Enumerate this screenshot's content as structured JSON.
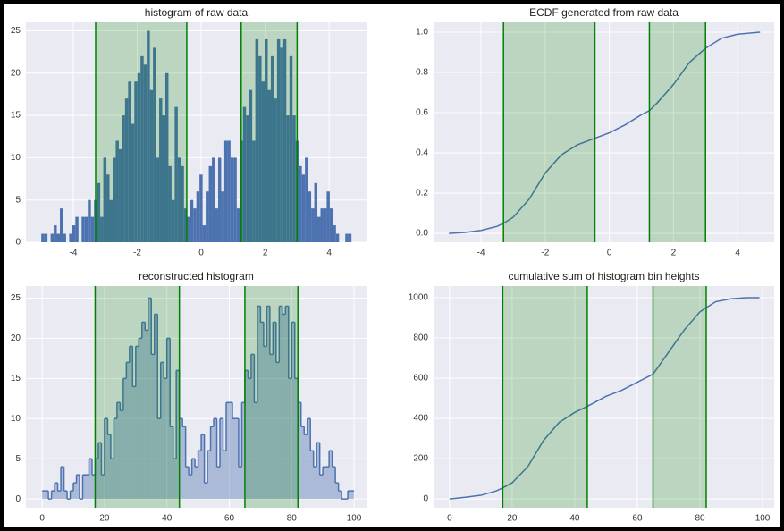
{
  "chart_data": [
    {
      "type": "histogram",
      "title": "histogram of raw data",
      "color": "#4c72b0",
      "grid": true,
      "bins": [
        -5.0,
        -4.903,
        -4.806,
        -4.709,
        -4.612,
        -4.515,
        -4.418,
        -4.321,
        -4.224,
        -4.127,
        -4.03,
        -3.933,
        -3.836,
        -3.739,
        -3.642,
        -3.545,
        -3.448,
        -3.351,
        -3.254,
        -3.157,
        -3.06,
        -2.963,
        -2.866,
        -2.769,
        -2.672,
        -2.575,
        -2.478,
        -2.381,
        -2.284,
        -2.187,
        -2.09,
        -1.993,
        -1.896,
        -1.799,
        -1.702,
        -1.605,
        -1.508,
        -1.411,
        -1.314,
        -1.217,
        -1.12,
        -1.023,
        -0.926,
        -0.829,
        -0.732,
        -0.635,
        -0.538,
        -0.441,
        -0.344,
        -0.247,
        -0.15,
        -0.053,
        0.044,
        0.141,
        0.238,
        0.335,
        0.432,
        0.529,
        0.626,
        0.723,
        0.82,
        0.917,
        1.014,
        1.111,
        1.208,
        1.305,
        1.402,
        1.499,
        1.596,
        1.693,
        1.79,
        1.887,
        1.984,
        2.081,
        2.178,
        2.275,
        2.372,
        2.469,
        2.566,
        2.663,
        2.76,
        2.857,
        2.954,
        3.051,
        3.148,
        3.245,
        3.342,
        3.439,
        3.536,
        3.633,
        3.73,
        3.827,
        3.924,
        4.021,
        4.118,
        4.215,
        4.312,
        4.409,
        4.506,
        4.603,
        4.7
      ],
      "values": [
        1,
        1,
        0,
        1,
        2,
        1,
        4,
        1,
        0,
        1,
        2,
        3,
        0,
        3,
        3,
        5,
        3,
        5,
        7,
        3,
        10,
        8,
        5,
        10,
        12,
        11,
        15,
        17,
        19,
        14,
        19,
        20,
        22,
        21,
        25,
        18,
        23,
        10,
        17,
        15,
        20,
        9,
        5,
        16,
        10,
        9,
        4,
        3,
        5,
        4,
        6,
        8,
        2,
        6,
        9,
        10,
        4,
        10,
        6,
        12,
        12,
        10,
        10,
        4,
        12,
        16,
        15,
        18,
        12,
        24,
        22,
        19,
        24,
        18,
        22,
        17,
        24,
        23,
        24,
        15,
        22,
        15,
        12,
        9,
        8,
        10,
        6,
        4,
        7,
        3,
        4,
        4,
        6,
        4,
        2,
        1,
        0,
        0,
        1,
        1
      ],
      "xlim": [
        -5.48,
        5.17
      ],
      "ylim": [
        0,
        26
      ],
      "xticks": [
        -4,
        -2,
        0,
        2,
        4
      ],
      "yticks": [
        0,
        5,
        10,
        15,
        20,
        25
      ],
      "spans": [
        [
          -3.3,
          -0.45
        ],
        [
          1.25,
          3.0
        ]
      ],
      "span_color": "#008000"
    },
    {
      "type": "line",
      "title": "ECDF generated from raw data",
      "color": "#4c72b0",
      "grid": true,
      "x": [
        -5.0,
        -4.5,
        -4.0,
        -3.5,
        -3.3,
        -3.0,
        -2.5,
        -2.0,
        -1.5,
        -1.0,
        -0.5,
        0,
        0.5,
        1.0,
        1.25,
        1.5,
        2.0,
        2.5,
        3.0,
        3.5,
        4.0,
        4.7
      ],
      "values": [
        0,
        0.005,
        0.015,
        0.035,
        0.05,
        0.08,
        0.17,
        0.3,
        0.39,
        0.44,
        0.47,
        0.5,
        0.54,
        0.59,
        0.61,
        0.65,
        0.74,
        0.85,
        0.92,
        0.97,
        0.99,
        1.0
      ],
      "xlim": [
        -5.48,
        5.14
      ],
      "ylim": [
        -0.044,
        1.049
      ],
      "xticks": [
        -4,
        -2,
        0,
        2,
        4
      ],
      "yticks": [
        {
          "value": 0,
          "label": "0.0"
        },
        0.2,
        0.4,
        0.6,
        0.8,
        {
          "value": 1,
          "label": "1.0"
        }
      ],
      "spans": [
        [
          -3.3,
          -0.45
        ],
        [
          1.25,
          3.0
        ]
      ],
      "span_color": "#008000"
    },
    {
      "type": "step_histogram",
      "title": "reconstructed histogram",
      "color": "#4c72b0",
      "grid": true,
      "bins": [
        0,
        1,
        2,
        3,
        4,
        5,
        6,
        7,
        8,
        9,
        10,
        11,
        12,
        13,
        14,
        15,
        16,
        17,
        18,
        19,
        20,
        21,
        22,
        23,
        24,
        25,
        26,
        27,
        28,
        29,
        30,
        31,
        32,
        33,
        34,
        35,
        36,
        37,
        38,
        39,
        40,
        41,
        42,
        43,
        44,
        45,
        46,
        47,
        48,
        49,
        50,
        51,
        52,
        53,
        54,
        55,
        56,
        57,
        58,
        59,
        60,
        61,
        62,
        63,
        64,
        65,
        66,
        67,
        68,
        69,
        70,
        71,
        72,
        73,
        74,
        75,
        76,
        77,
        78,
        79,
        80,
        81,
        82,
        83,
        84,
        85,
        86,
        87,
        88,
        89,
        90,
        91,
        92,
        93,
        94,
        95,
        96,
        97,
        98,
        99,
        100
      ],
      "values": [
        1,
        1,
        0,
        1,
        2,
        1,
        4,
        1,
        0,
        1,
        2,
        3,
        0,
        3,
        3,
        5,
        3,
        5,
        7,
        3,
        10,
        8,
        5,
        10,
        12,
        11,
        15,
        17,
        19,
        14,
        19,
        20,
        22,
        21,
        25,
        18,
        23,
        10,
        17,
        15,
        20,
        9,
        5,
        16,
        10,
        9,
        4,
        3,
        5,
        4,
        6,
        8,
        2,
        6,
        9,
        10,
        4,
        10,
        6,
        12,
        12,
        10,
        10,
        4,
        12,
        16,
        15,
        18,
        12,
        24,
        22,
        19,
        24,
        18,
        22,
        17,
        24,
        23,
        24,
        15,
        22,
        15,
        12,
        9,
        8,
        10,
        6,
        4,
        7,
        3,
        4,
        4,
        6,
        4,
        2,
        1,
        0,
        0,
        1,
        1
      ],
      "xlim": [
        -5.2,
        104
      ],
      "ylim": [
        -1.1,
        26.5
      ],
      "xticks": [
        0,
        20,
        40,
        60,
        80,
        100
      ],
      "yticks": [
        0,
        5,
        10,
        15,
        20,
        25
      ],
      "spans": [
        [
          17,
          44
        ],
        [
          65,
          82
        ]
      ],
      "span_color": "#008000"
    },
    {
      "type": "line",
      "title": "cumulative sum of histogram bin heights",
      "color": "#4c72b0",
      "grid": true,
      "x": [
        0,
        5,
        10,
        15,
        17,
        20,
        25,
        30,
        35,
        40,
        44,
        50,
        55,
        60,
        65,
        70,
        75,
        80,
        82,
        85,
        90,
        95,
        99
      ],
      "values": [
        0,
        8,
        18,
        40,
        55,
        80,
        160,
        290,
        380,
        430,
        460,
        510,
        540,
        580,
        620,
        730,
        840,
        930,
        950,
        980,
        995,
        1000,
        1000
      ],
      "xlim": [
        -5.1,
        103.7
      ],
      "ylim": [
        -44,
        1058
      ],
      "xticks": [
        0,
        20,
        40,
        60,
        80,
        100
      ],
      "yticks": [
        0,
        200,
        400,
        600,
        800,
        1000
      ],
      "spans": [
        [
          17,
          44
        ],
        [
          65,
          82
        ]
      ],
      "span_color": "#008000"
    }
  ]
}
